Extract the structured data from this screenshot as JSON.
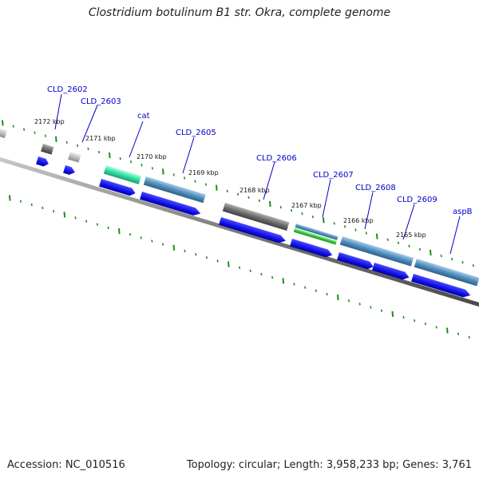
{
  "title": "Clostridium botulinum B1 str. Okra, complete genome",
  "footer": {
    "accession": "Accession: NC_010516",
    "stats": "Topology: circular; Length: 3,958,233 bp; Genes: 3,761"
  },
  "gene_labels": [
    "CLD_2602",
    "CLD_2603",
    "cat",
    "CLD_2605",
    "CLD_2606",
    "CLD_2607",
    "CLD_2608",
    "CLD_2609",
    "aspB"
  ],
  "position_labels": [
    "2172 kbp",
    "2171 kbp",
    "2170 kbp",
    "2169 kbp",
    "2168 kbp",
    "2167 kbp",
    "2166 kbp",
    "2165 kbp"
  ],
  "colors": {
    "cds": "#1010e8",
    "teal": "#4f8fbf",
    "gray": "#6e6e6e",
    "green": "#32e0a0",
    "backbone": "#7a7a7a",
    "ticks": "#1e8c1e",
    "label": "#0000c8"
  }
}
